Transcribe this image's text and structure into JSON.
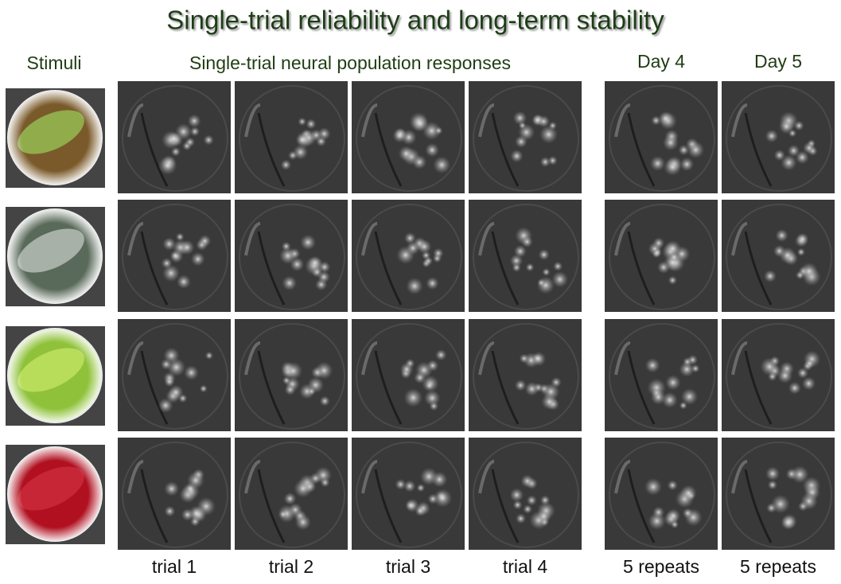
{
  "title": "Single-trial reliability and long-term stability",
  "headers": {
    "stimuli": "Stimuli",
    "responses": "Single-trial neural population responses",
    "day4": "Day 4",
    "day5": "Day 5"
  },
  "footers": [
    "trial 1",
    "trial 2",
    "trial 3",
    "trial 4",
    "5 repeats",
    "5 repeats"
  ]
}
